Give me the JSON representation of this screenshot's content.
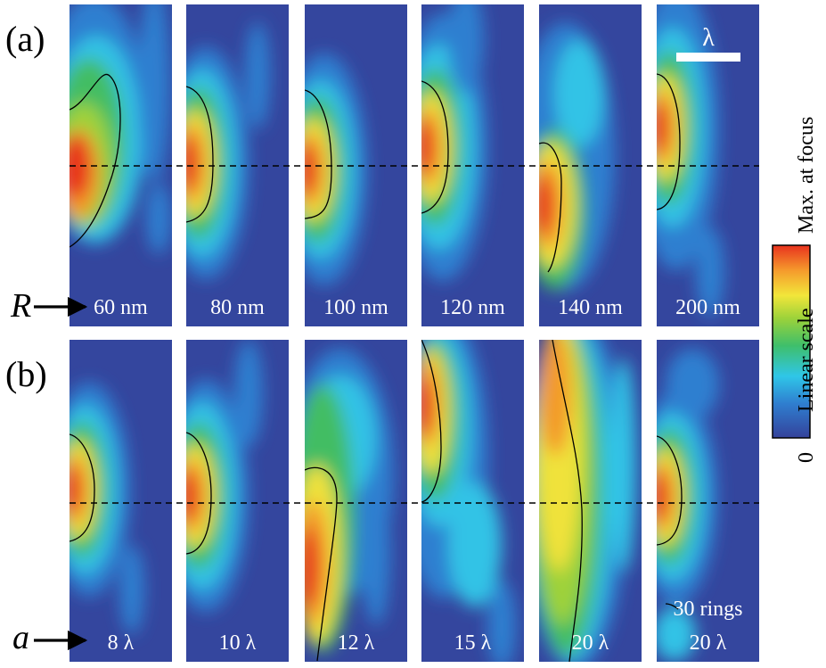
{
  "panel_labels": {
    "a": "(a)",
    "b": "(b)"
  },
  "row_variables": {
    "a": "R",
    "b": "a"
  },
  "scale_bar_label": "λ",
  "colorbar": {
    "top_label": "Max. at focus",
    "middle_label": "Linear scale",
    "bottom_label": "0",
    "colors": [
      "#34429b",
      "#2f7fd0",
      "#2fc6e8",
      "#3fbf6a",
      "#9bd23a",
      "#f2e63a",
      "#f59a2c",
      "#e8321e"
    ]
  },
  "row_a_tiles": [
    {
      "label": "60 nm"
    },
    {
      "label": "80 nm"
    },
    {
      "label": "100 nm"
    },
    {
      "label": "120 nm"
    },
    {
      "label": "140 nm"
    },
    {
      "label": "200 nm"
    }
  ],
  "row_b_tiles": [
    {
      "label": "8 λ"
    },
    {
      "label": "10 λ"
    },
    {
      "label": "12 λ"
    },
    {
      "label": "15 λ"
    },
    {
      "label": "20 λ"
    },
    {
      "label": "20 λ",
      "extra_label": "30 rings"
    }
  ]
}
